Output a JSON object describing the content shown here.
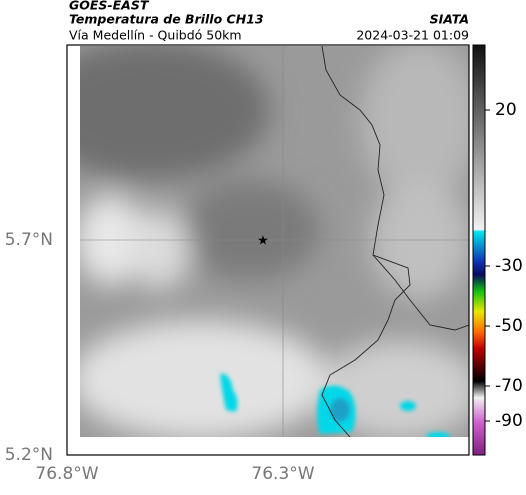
{
  "header": {
    "title": "GOES-EAST",
    "subtitle": "Temperatura de Brillo CH13",
    "source": "SIATA",
    "location": "Vía Medellín - Quibdó 50km",
    "datetime": "2024-03-21 01:09"
  },
  "map": {
    "xticks": [
      "76.8°W",
      "76.3°W"
    ],
    "yticks": [
      "5.7°N",
      "5.2°N"
    ]
  },
  "colorbar": {
    "ticks": [
      20,
      -30,
      -50,
      -70,
      -90
    ]
  }
}
